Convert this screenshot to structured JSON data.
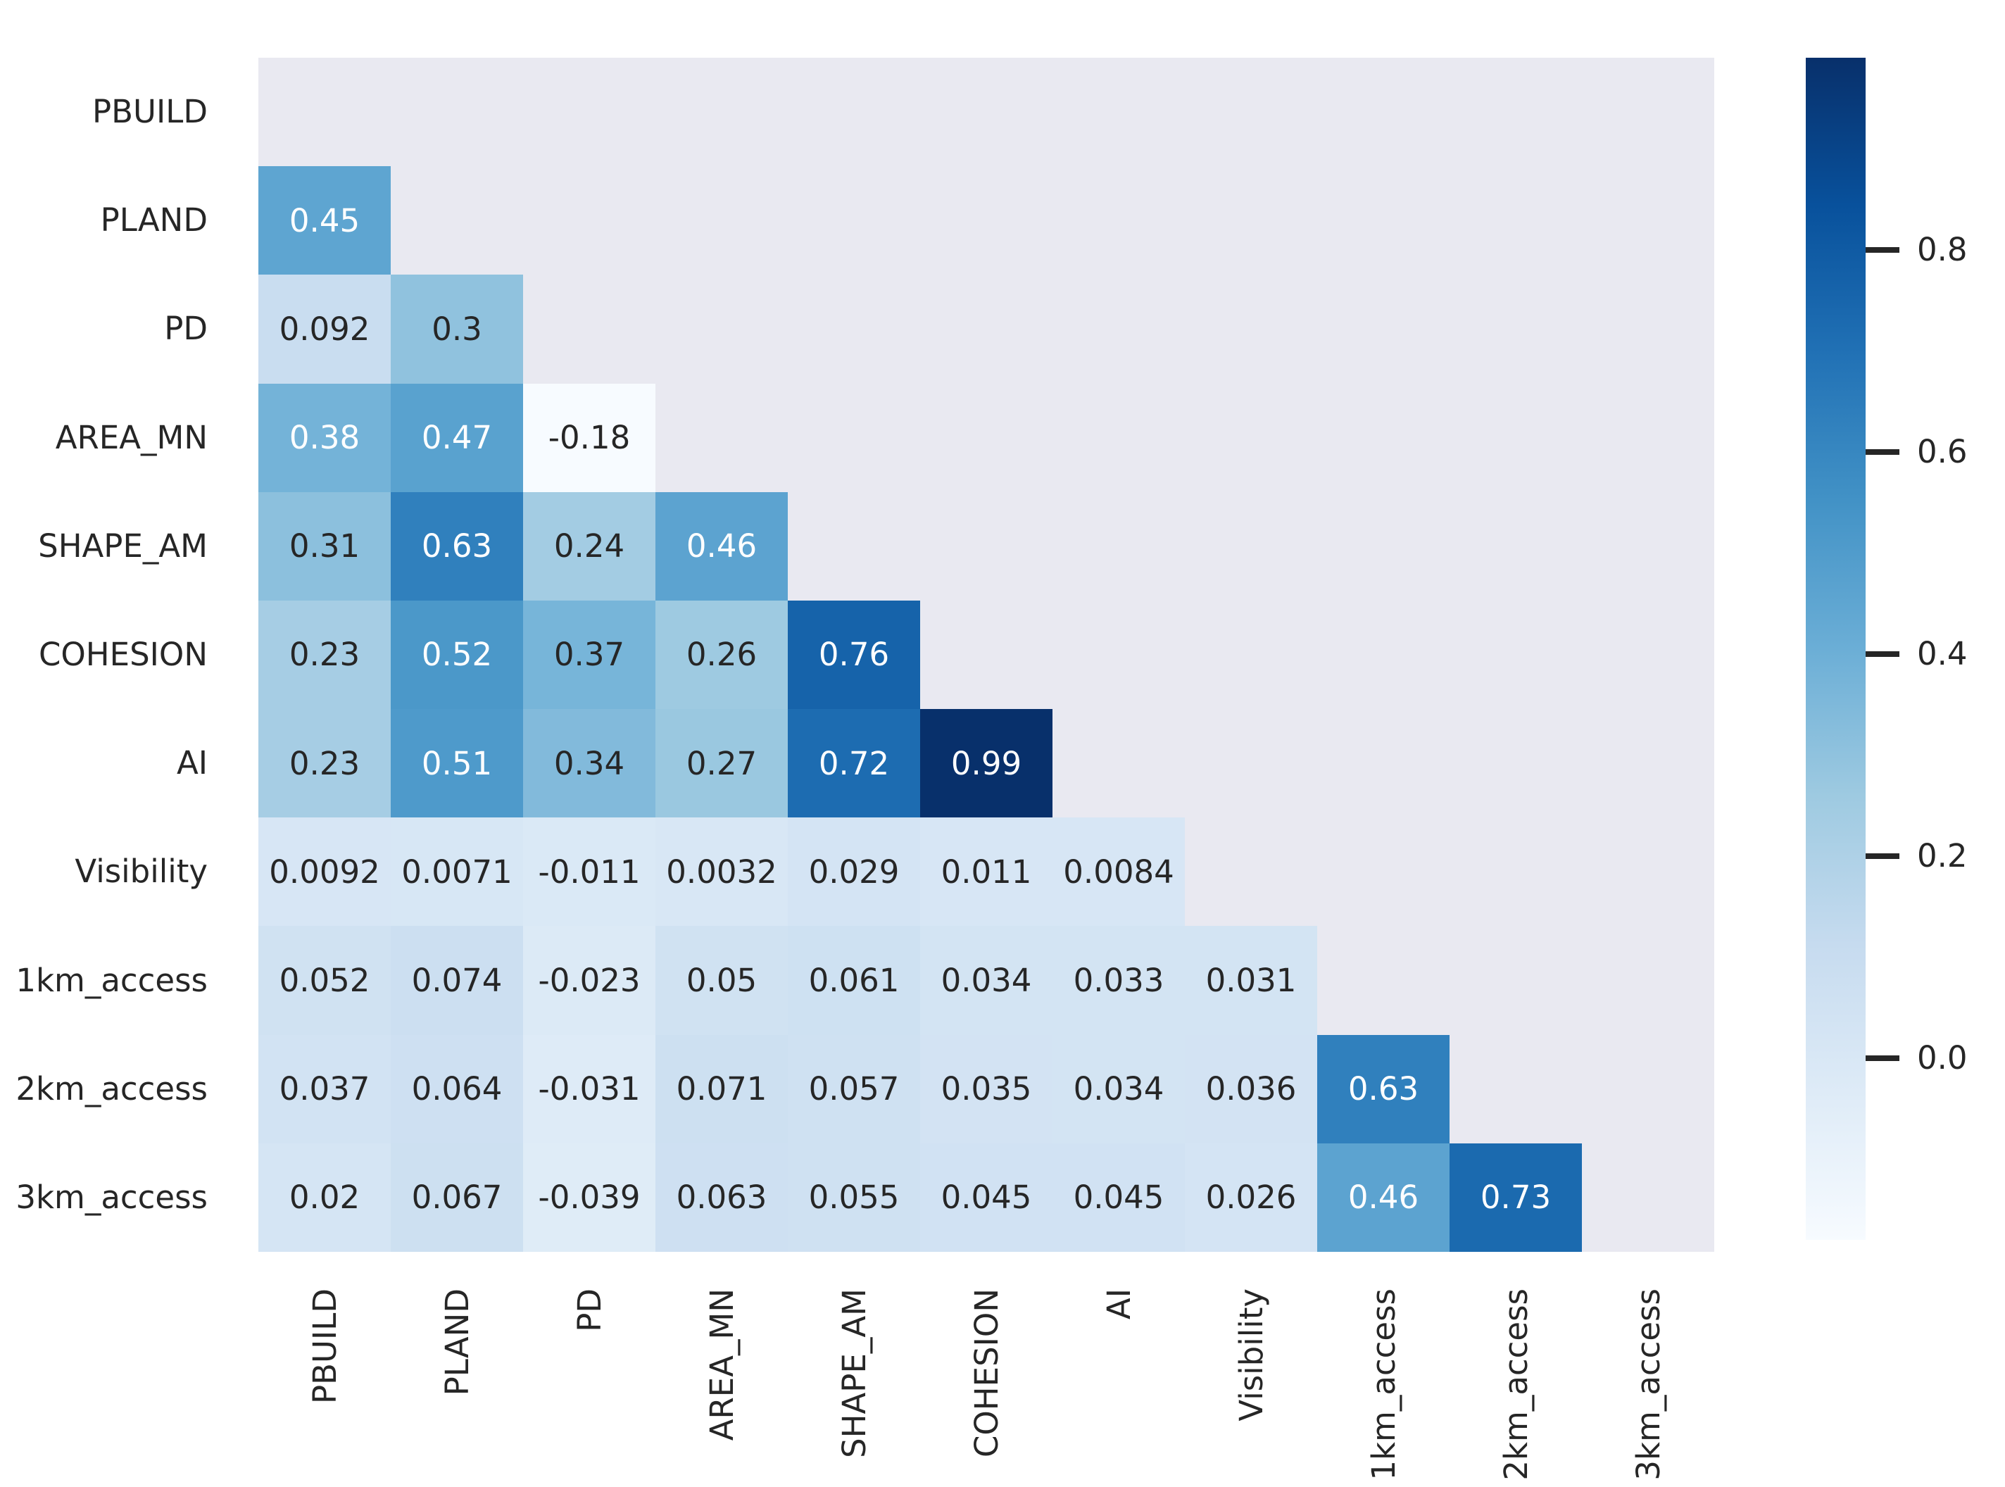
{
  "chart_data": {
    "type": "heatmap",
    "title": "",
    "description": "Lower-triangle correlation matrix heatmap with Blues colormap",
    "variables": [
      "PBUILD",
      "PLAND",
      "PD",
      "AREA_MN",
      "SHAPE_AM",
      "COHESION",
      "AI",
      "Visibility",
      "1km_access",
      "2km_access",
      "3km_access"
    ],
    "matrix": [
      [
        null,
        null,
        null,
        null,
        null,
        null,
        null,
        null,
        null,
        null,
        null
      ],
      [
        "0.45",
        null,
        null,
        null,
        null,
        null,
        null,
        null,
        null,
        null,
        null
      ],
      [
        "0.092",
        "0.3",
        null,
        null,
        null,
        null,
        null,
        null,
        null,
        null,
        null
      ],
      [
        "0.38",
        "0.47",
        "-0.18",
        null,
        null,
        null,
        null,
        null,
        null,
        null,
        null
      ],
      [
        "0.31",
        "0.63",
        "0.24",
        "0.46",
        null,
        null,
        null,
        null,
        null,
        null,
        null
      ],
      [
        "0.23",
        "0.52",
        "0.37",
        "0.26",
        "0.76",
        null,
        null,
        null,
        null,
        null,
        null
      ],
      [
        "0.23",
        "0.51",
        "0.34",
        "0.27",
        "0.72",
        "0.99",
        null,
        null,
        null,
        null,
        null
      ],
      [
        "0.0092",
        "0.0071",
        "-0.011",
        "0.0032",
        "0.029",
        "0.011",
        "0.0084",
        null,
        null,
        null,
        null
      ],
      [
        "0.052",
        "0.074",
        "-0.023",
        "0.05",
        "0.061",
        "0.034",
        "0.033",
        "0.031",
        null,
        null,
        null
      ],
      [
        "0.037",
        "0.064",
        "-0.031",
        "0.071",
        "0.057",
        "0.035",
        "0.034",
        "0.036",
        "0.63",
        null,
        null
      ],
      [
        "0.02",
        "0.067",
        "-0.039",
        "0.063",
        "0.055",
        "0.045",
        "0.045",
        "0.026",
        "0.46",
        "0.73",
        null
      ]
    ],
    "colormap": "Blues",
    "colormap_stops": [
      "#f7fbff",
      "#deebf7",
      "#c6dbef",
      "#9ecae1",
      "#6baed6",
      "#4292c6",
      "#2171b5",
      "#08519c",
      "#08306b"
    ],
    "vmin": -0.18,
    "vmax": 0.99,
    "mask": "upper-triangle-including-diagonal",
    "masked_background": "#e9e9f1",
    "annotation_color_dark": "#262626",
    "annotation_color_light": "#ffffff",
    "legend_position": "right",
    "colorbar_ticks": [
      {
        "value": 0.8,
        "label": "0.8"
      },
      {
        "value": 0.6,
        "label": "0.6"
      },
      {
        "value": 0.4,
        "label": "0.4"
      },
      {
        "value": 0.2,
        "label": "0.2"
      },
      {
        "value": 0.0,
        "label": "0.0"
      }
    ],
    "grid": false
  }
}
